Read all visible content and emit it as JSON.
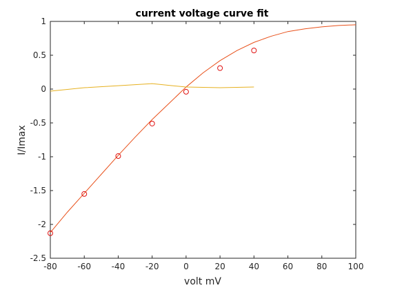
{
  "chart_data": {
    "type": "line",
    "title": "current voltage curve fit",
    "xlabel": "volt mV",
    "ylabel": "I/Imax",
    "xlim": [
      -80,
      100
    ],
    "ylim": [
      -2.5,
      1
    ],
    "xticks": [
      -80,
      -60,
      -40,
      -20,
      0,
      20,
      40,
      60,
      80,
      100
    ],
    "xtick_labels": [
      "-80",
      "-60",
      "-40",
      "-20",
      "0",
      "20",
      "40",
      "60",
      "80",
      "100"
    ],
    "yticks": [
      1,
      0.5,
      0,
      -0.5,
      -1,
      -1.5,
      -2,
      -2.5
    ],
    "ytick_labels": [
      "1",
      "0.5",
      "0",
      "-0.5",
      "-1",
      "-1.5",
      "-2",
      "-2.5"
    ],
    "grid": false,
    "series": [
      {
        "style": "markers",
        "marker": "circle",
        "color": "#e01010",
        "x": [
          -80,
          -60,
          -40,
          -20,
          0,
          20,
          40
        ],
        "y": [
          -2.13,
          -1.55,
          -0.99,
          -0.51,
          -0.04,
          0.31,
          0.57
        ]
      },
      {
        "style": "line",
        "color": "#e8501a",
        "x": [
          -80,
          -70,
          -60,
          -50,
          -40,
          -30,
          -20,
          -10,
          0,
          10,
          20,
          30,
          40,
          50,
          60,
          70,
          80,
          90,
          100
        ],
        "y": [
          -2.12,
          -1.82,
          -1.54,
          -1.26,
          -0.98,
          -0.71,
          -0.45,
          -0.21,
          0.03,
          0.24,
          0.42,
          0.57,
          0.69,
          0.78,
          0.85,
          0.89,
          0.92,
          0.94,
          0.95
        ]
      },
      {
        "style": "line",
        "color": "#e6b01e",
        "x": [
          -80,
          -60,
          -40,
          -20,
          0,
          20,
          40
        ],
        "y": [
          -0.03,
          0.02,
          0.05,
          0.08,
          0.03,
          0.02,
          0.03
        ]
      }
    ]
  }
}
